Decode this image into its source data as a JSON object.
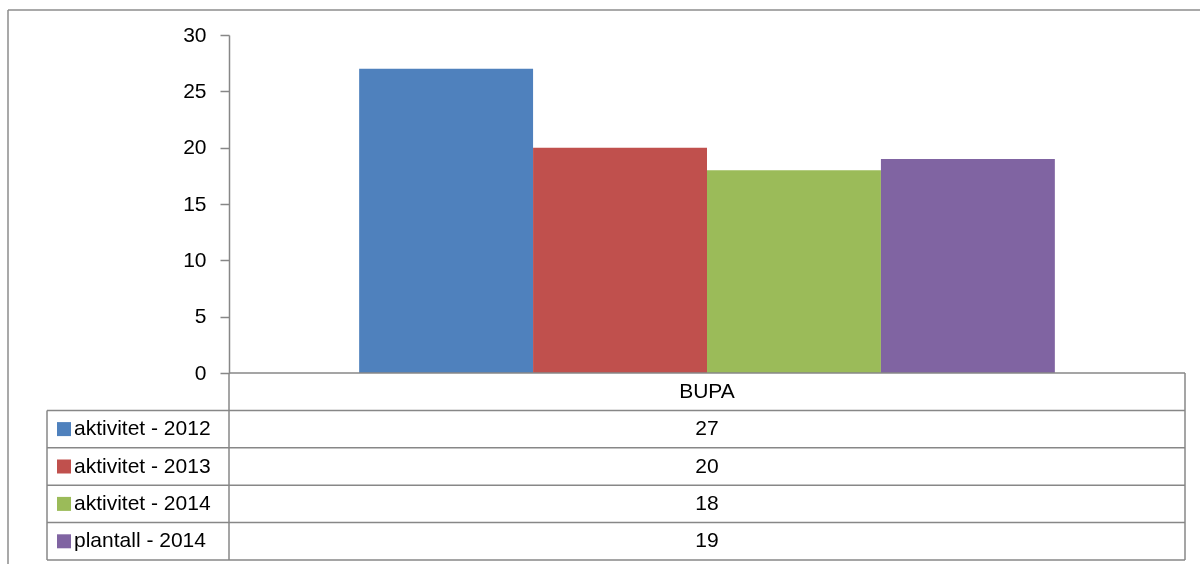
{
  "chart_data": {
    "type": "bar",
    "categories": [
      "BUPA"
    ],
    "series": [
      {
        "name": "aktivitet - 2012",
        "color": "#4f81bd",
        "values": [
          27
        ]
      },
      {
        "name": "aktivitet - 2013",
        "color": "#c0504d",
        "values": [
          20
        ]
      },
      {
        "name": "aktivitet - 2014",
        "color": "#9bbb59",
        "values": [
          18
        ]
      },
      {
        "name": "plantall - 2014",
        "color": "#8064a2",
        "values": [
          19
        ]
      }
    ],
    "ylim": [
      0,
      30
    ],
    "yticks": [
      0,
      5,
      10,
      15,
      20,
      25,
      30
    ],
    "grid": false,
    "legend": "bottom",
    "annotations": [
      "27",
      "20",
      "18",
      "19"
    ]
  }
}
